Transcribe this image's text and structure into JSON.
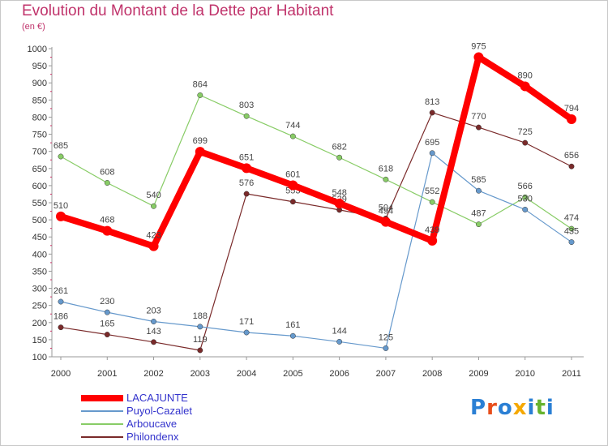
{
  "chart_data": {
    "type": "line",
    "title": "Evolution du Montant de la Dette par Habitant",
    "subtitle": "(en €)",
    "x": [
      "2000",
      "2001",
      "2002",
      "2003",
      "2004",
      "2005",
      "2006",
      "2007",
      "2008",
      "2009",
      "2010",
      "2011"
    ],
    "yticks": [
      "100",
      "150",
      "200",
      "250",
      "300",
      "350",
      "400",
      "450",
      "500",
      "550",
      "600",
      "650",
      "700",
      "750",
      "800",
      "850",
      "900",
      "950",
      "1000"
    ],
    "ylim": [
      100,
      1000
    ],
    "grid": false,
    "legend_position": "bottom-left",
    "series": [
      {
        "name": "LACAJUNTE",
        "color": "#ff0000",
        "values": [
          510,
          468,
          423,
          699,
          651,
          601,
          548,
          494,
          439,
          975,
          890,
          794
        ]
      },
      {
        "name": "Puyol-Cazalet",
        "color": "#6699cc",
        "values": [
          261,
          230,
          203,
          188,
          171,
          161,
          144,
          125,
          695,
          585,
          530,
          435
        ]
      },
      {
        "name": "Arboucave",
        "color": "#88cc66",
        "values": [
          685,
          608,
          540,
          864,
          803,
          744,
          682,
          618,
          552,
          487,
          566,
          474
        ]
      },
      {
        "name": "Philondenx",
        "color": "#7a2a2a",
        "values": [
          186,
          165,
          143,
          119,
          576,
          553,
          529,
          504,
          813,
          770,
          725,
          656
        ]
      }
    ]
  },
  "logo": {
    "text": "Proxiti",
    "colors": [
      "#2a7fd4",
      "#e84e1b",
      "#2a7fd4",
      "#f5a800",
      "#2a7fd4",
      "#66b32e",
      "#2a7fd4"
    ]
  }
}
